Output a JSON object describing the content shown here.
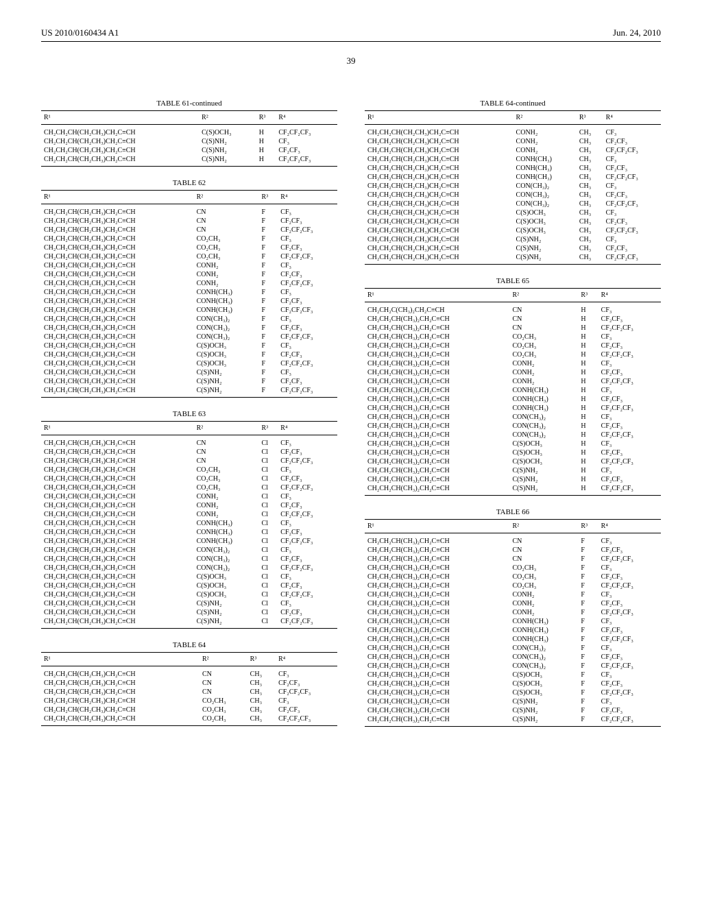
{
  "header": {
    "left": "US 2010/0160434 A1",
    "right": "Jun. 24, 2010"
  },
  "page_number": "39",
  "r1_a": "CH₂CH₂CH(CH₂CH₃)CH₂C≡CH",
  "r1_b": "CH₂CH₂C(CH₃)₂CH₂C≡CH",
  "r1_c": "CH₂CH₂CH(CH₃)₂CH₂C≡CH",
  "r2": {
    "cn": "CN",
    "co2ch3": "CO₂CH₃",
    "conh2": "CONH₂",
    "conhch3": "CONH(CH₃)",
    "conch32": "CON(CH₃)₂",
    "csoch3": "C(S)OCH₃",
    "csnh2": "C(S)NH₂"
  },
  "r3": {
    "h": "H",
    "f": "F",
    "cl": "Cl",
    "ch3": "CH₃"
  },
  "r4": {
    "a": "CF₃",
    "b": "CF₂CF₃",
    "c": "CF₂CF₂CF₃"
  },
  "tables": {
    "t61": {
      "title": "TABLE 61-continued",
      "r1": "r1_a",
      "r3": "h",
      "rows": [
        [
          "csoch3",
          "c"
        ],
        [
          "csnh2",
          "a"
        ],
        [
          "csnh2",
          "b"
        ],
        [
          "csnh2",
          "c"
        ]
      ]
    },
    "t62": {
      "title": "TABLE 62",
      "r1": "r1_a",
      "r3": "f",
      "full": true
    },
    "t63": {
      "title": "TABLE 63",
      "r1": "r1_a",
      "r3": "cl",
      "full": true
    },
    "t64h": {
      "title": "TABLE 64",
      "r1": "r1_a",
      "r3": "ch3",
      "rows": [
        [
          "cn",
          "a"
        ],
        [
          "cn",
          "b"
        ],
        [
          "cn",
          "c"
        ],
        [
          "co2ch3",
          "a"
        ],
        [
          "co2ch3",
          "b"
        ],
        [
          "co2ch3",
          "c"
        ]
      ]
    },
    "t64c": {
      "title": "TABLE 64-continued",
      "r1": "r1_a",
      "r3": "ch3",
      "rows": [
        [
          "conh2",
          "a"
        ],
        [
          "conh2",
          "b"
        ],
        [
          "conh2",
          "c"
        ],
        [
          "conhch3",
          "a"
        ],
        [
          "conhch3",
          "b"
        ],
        [
          "conhch3",
          "c"
        ],
        [
          "conch32",
          "a"
        ],
        [
          "conch32",
          "b"
        ],
        [
          "conch32",
          "c"
        ],
        [
          "csoch3",
          "a"
        ],
        [
          "csoch3",
          "b"
        ],
        [
          "csoch3",
          "c"
        ],
        [
          "csnh2",
          "a"
        ],
        [
          "csnh2",
          "b"
        ],
        [
          "csnh2",
          "c"
        ]
      ]
    },
    "t65": {
      "title": "TABLE 65",
      "r1": "r1_c",
      "r3": "h",
      "full": true,
      "first_r1": "r1_b"
    },
    "t66": {
      "title": "TABLE 66",
      "r1": "r1_c",
      "r3": "f",
      "full": true
    }
  },
  "full_r2_seq": [
    "cn",
    "cn",
    "cn",
    "co2ch3",
    "co2ch3",
    "co2ch3",
    "conh2",
    "conh2",
    "conh2",
    "conhch3",
    "conhch3",
    "conhch3",
    "conch32",
    "conch32",
    "conch32",
    "csoch3",
    "csoch3",
    "csoch3",
    "csnh2",
    "csnh2",
    "csnh2"
  ],
  "full_r4_seq": [
    "a",
    "b",
    "c",
    "a",
    "b",
    "c",
    "a",
    "b",
    "c",
    "a",
    "b",
    "c",
    "a",
    "b",
    "c",
    "a",
    "b",
    "c",
    "a",
    "b",
    "c"
  ],
  "headers": {
    "r1": "R¹",
    "r2": "R²",
    "r3": "R³",
    "r4": "R⁴"
  }
}
